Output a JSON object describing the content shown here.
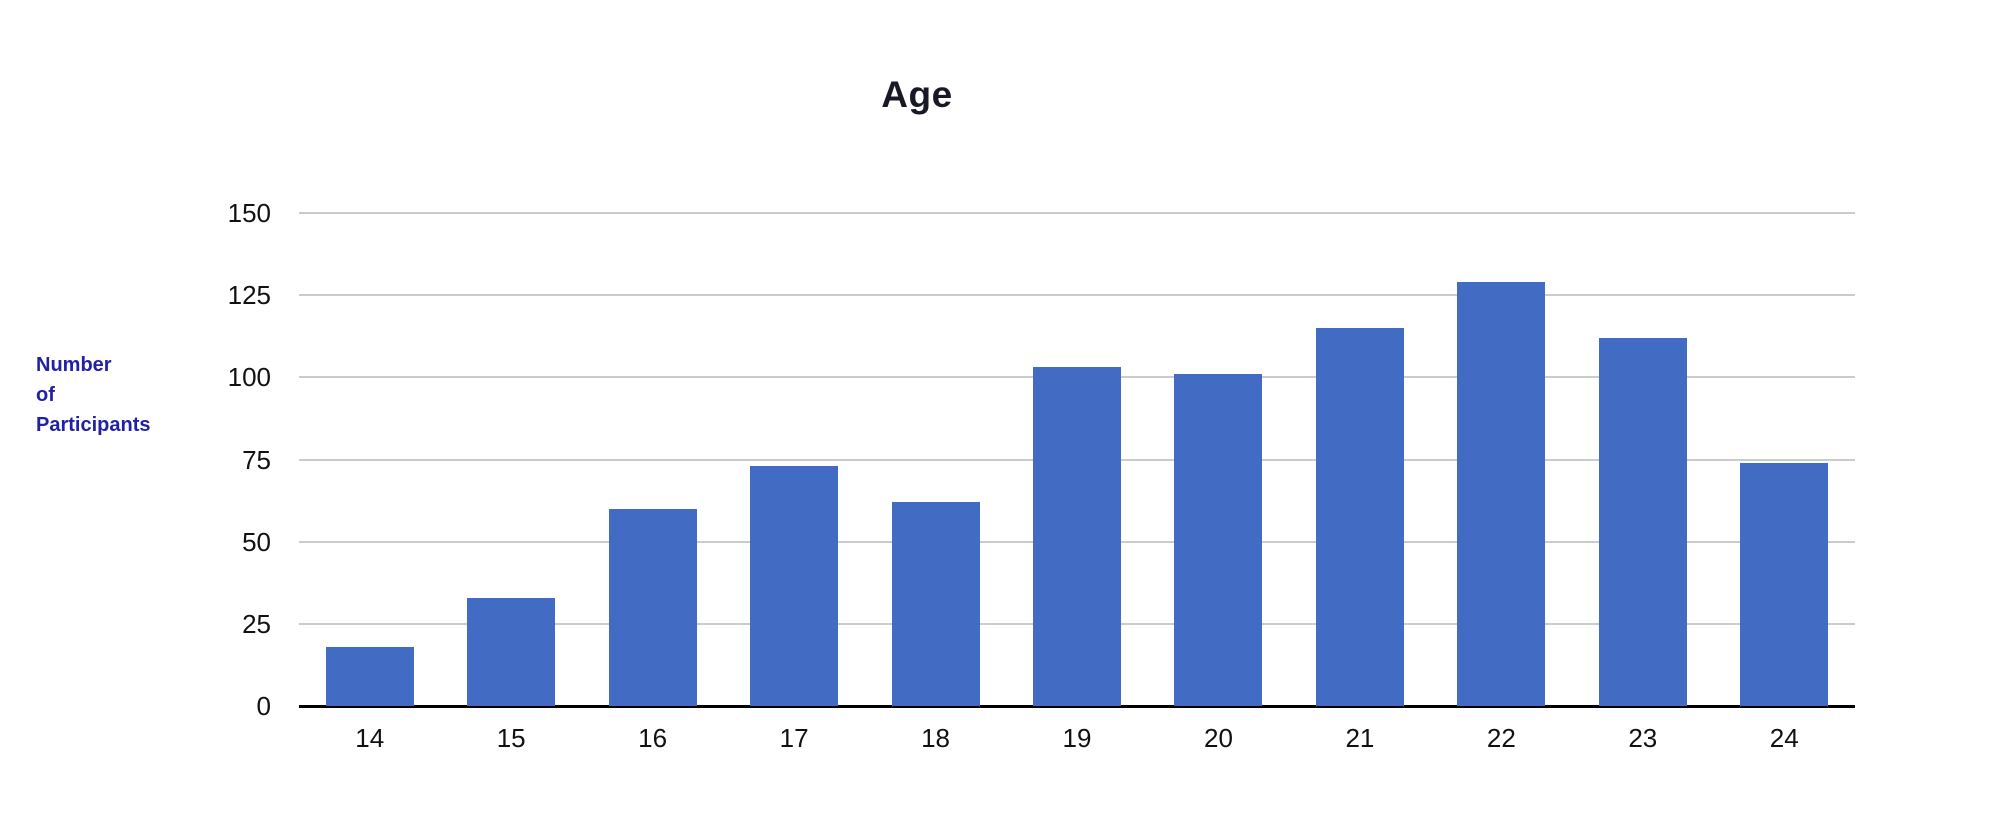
{
  "chart_data": {
    "type": "bar",
    "title": "Age",
    "xlabel": "",
    "ylabel": "Number\nof\nParticipants",
    "categories": [
      "14",
      "15",
      "16",
      "17",
      "18",
      "19",
      "20",
      "21",
      "22",
      "23",
      "24"
    ],
    "values": [
      18,
      33,
      60,
      73,
      62,
      103,
      101,
      115,
      129,
      112,
      74
    ],
    "yticks": [
      0,
      25,
      50,
      75,
      100,
      125,
      150
    ],
    "ylim": [
      0,
      150
    ],
    "grid": true,
    "legend_position": "none",
    "colors": {
      "bar": "#426BC4",
      "title": "#181826",
      "ylabel": "#2121A6",
      "tick_labels": "#111111",
      "gridline": "#CBCBCB",
      "axis_line": "#000000",
      "background": "#FFFFFF"
    }
  }
}
